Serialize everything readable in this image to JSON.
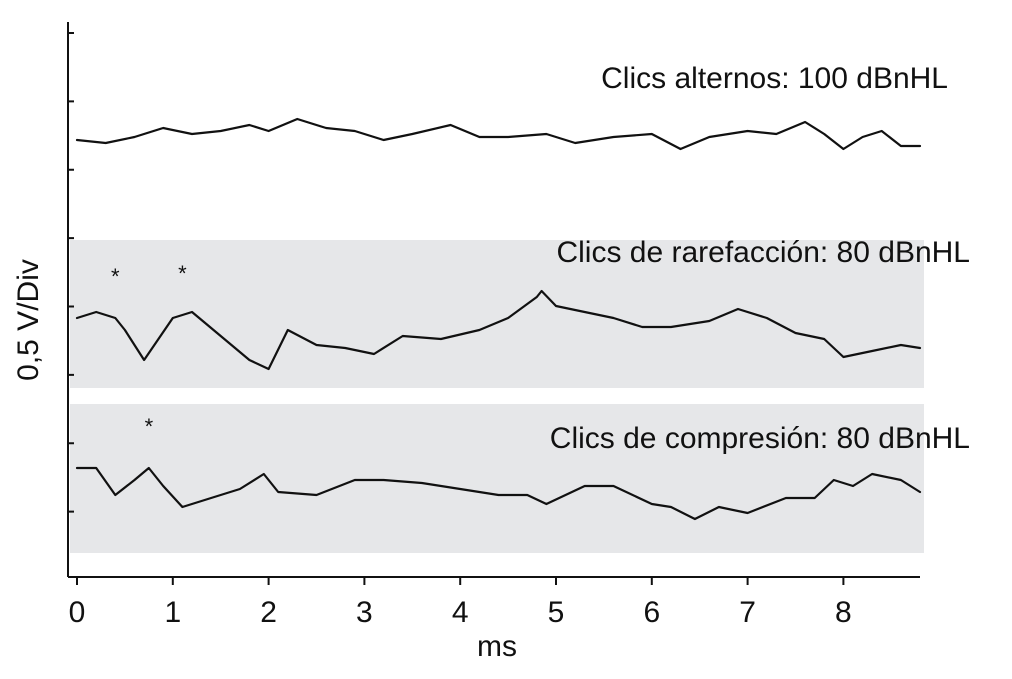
{
  "chart_data": {
    "type": "line",
    "xlabel": "ms",
    "ylabel": "0,5 V/Div",
    "xlim": [
      -0.1,
      8.8
    ],
    "xticks": [
      0,
      1,
      2,
      3,
      4,
      5,
      6,
      7,
      8
    ],
    "ytick_count": 8,
    "grid": false,
    "colors": {
      "trace": "#111111",
      "band": "#e6e7e9"
    },
    "series": [
      {
        "name": "Clics alternos: 100 dBnHL",
        "shaded": false,
        "x": [
          0,
          0.3,
          0.6,
          0.9,
          1.2,
          1.5,
          1.8,
          2.0,
          2.3,
          2.6,
          2.9,
          3.2,
          3.5,
          3.9,
          4.2,
          4.5,
          4.9,
          5.2,
          5.6,
          6.0,
          6.3,
          6.6,
          7.0,
          7.3,
          7.6,
          7.8,
          8.0,
          8.2,
          8.4,
          8.6,
          8.8
        ],
        "y": [
          -0.05,
          -0.1,
          0.0,
          0.15,
          0.05,
          0.1,
          0.2,
          0.1,
          0.3,
          0.15,
          0.1,
          -0.05,
          0.05,
          0.2,
          0.0,
          0.0,
          0.05,
          -0.1,
          0.0,
          0.05,
          -0.2,
          0.0,
          0.1,
          0.05,
          0.25,
          0.05,
          -0.2,
          0.0,
          0.1,
          -0.15,
          -0.15
        ]
      },
      {
        "name": "Clics de rarefacción: 80 dBnHL",
        "shaded": true,
        "x": [
          0,
          0.2,
          0.4,
          0.5,
          0.7,
          1.0,
          1.2,
          1.5,
          1.8,
          2.0,
          2.2,
          2.5,
          2.8,
          3.1,
          3.4,
          3.8,
          4.2,
          4.5,
          4.8,
          4.85,
          5.0,
          5.3,
          5.6,
          5.9,
          6.2,
          6.6,
          6.9,
          7.2,
          7.5,
          7.8,
          8.0,
          8.3,
          8.6,
          8.8
        ],
        "y": [
          0.0,
          0.1,
          0.0,
          -0.2,
          -0.7,
          0.0,
          0.1,
          -0.3,
          -0.7,
          -0.85,
          -0.2,
          -0.45,
          -0.5,
          -0.6,
          -0.3,
          -0.35,
          -0.2,
          0.0,
          0.35,
          0.45,
          0.2,
          0.1,
          0.0,
          -0.15,
          -0.15,
          -0.05,
          0.15,
          0.0,
          -0.25,
          -0.35,
          -0.65,
          -0.55,
          -0.45,
          -0.5
        ]
      },
      {
        "name": "Clics de compresión: 80 dBnHL",
        "shaded": true,
        "x": [
          0,
          0.2,
          0.4,
          0.6,
          0.75,
          0.9,
          1.1,
          1.4,
          1.7,
          1.95,
          2.1,
          2.5,
          2.9,
          3.2,
          3.6,
          4.0,
          4.4,
          4.7,
          4.9,
          5.3,
          5.6,
          6.0,
          6.2,
          6.45,
          6.7,
          7.0,
          7.4,
          7.7,
          7.9,
          8.1,
          8.3,
          8.6,
          8.8
        ],
        "y": [
          0.2,
          0.2,
          -0.25,
          0.0,
          0.2,
          -0.1,
          -0.45,
          -0.3,
          -0.15,
          0.1,
          -0.2,
          -0.25,
          0.0,
          0.0,
          -0.05,
          -0.15,
          -0.25,
          -0.25,
          -0.4,
          -0.1,
          -0.1,
          -0.4,
          -0.45,
          -0.65,
          -0.45,
          -0.55,
          -0.3,
          -0.3,
          0.0,
          -0.1,
          0.1,
          0.0,
          -0.2
        ]
      }
    ],
    "markers": [
      {
        "series": 1,
        "x": 0.4,
        "symbol": "*"
      },
      {
        "series": 1,
        "x": 1.1,
        "symbol": "*"
      },
      {
        "series": 2,
        "x": 0.75,
        "symbol": "*"
      }
    ]
  }
}
